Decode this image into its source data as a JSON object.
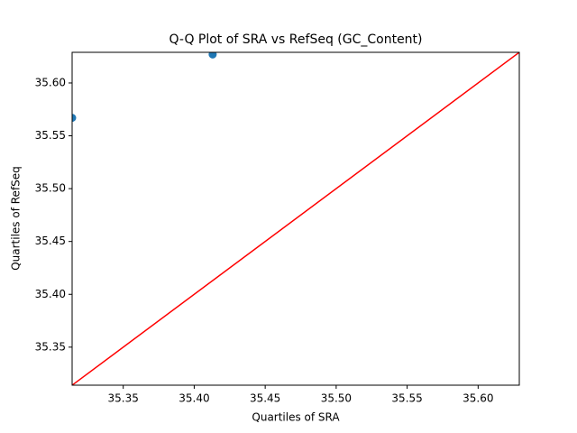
{
  "chart_data": {
    "type": "scatter",
    "title": "Q-Q Plot of SRA vs RefSeq (GC_Content)",
    "x_label": "Quartiles of SRA",
    "y_label": "Quartiles of RefSeq",
    "series": [
      {
        "color": "#1f77b4",
        "x": [
          35.314,
          35.413
        ],
        "values": [
          35.567,
          35.627
        ]
      }
    ],
    "reference_line": {
      "color": "#ff0000",
      "x": [
        35.314,
        35.629
      ],
      "y": [
        35.314,
        35.629
      ]
    },
    "xlim": [
      35.314,
      35.629
    ],
    "ylim": [
      35.314,
      35.629
    ],
    "xticks": [
      35.35,
      {
        "value": 35.4,
        "label": "35.40"
      },
      35.45,
      {
        "value": 35.5,
        "label": "35.50"
      },
      35.55,
      {
        "value": 35.6,
        "label": "35.60"
      }
    ],
    "yticks": [
      35.35,
      {
        "value": 35.4,
        "label": "35.40"
      },
      35.45,
      {
        "value": 35.5,
        "label": "35.50"
      },
      35.55,
      {
        "value": 35.6,
        "label": "35.60"
      }
    ],
    "grid": false
  }
}
